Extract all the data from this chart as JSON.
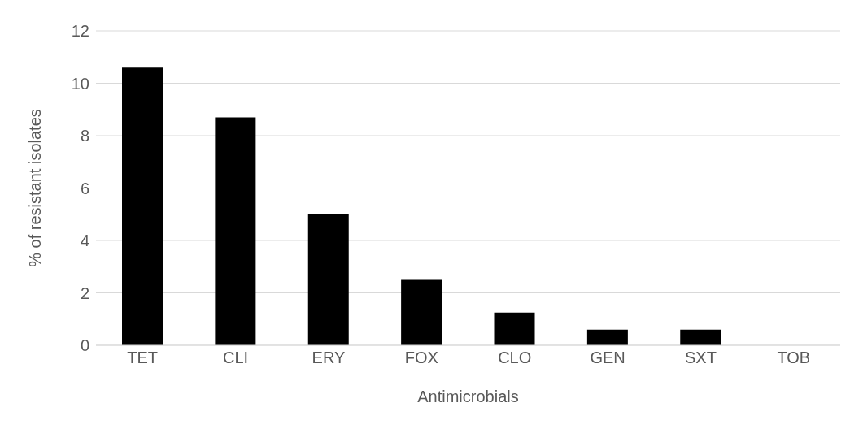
{
  "chart_data": {
    "type": "bar",
    "xlabel": "Antimicrobials",
    "ylabel": "% of resistant isolates",
    "categories": [
      "TET",
      "CLI",
      "ERY",
      "FOX",
      "CLO",
      "GEN",
      "SXT",
      "TOB"
    ],
    "values": [
      10.6,
      8.7,
      5.0,
      2.5,
      1.25,
      0.6,
      0.6,
      0
    ],
    "color": "#000000",
    "ylim": [
      0,
      12
    ],
    "yticks": [
      0,
      2,
      4,
      6,
      8,
      10,
      12
    ],
    "grid": "y"
  }
}
